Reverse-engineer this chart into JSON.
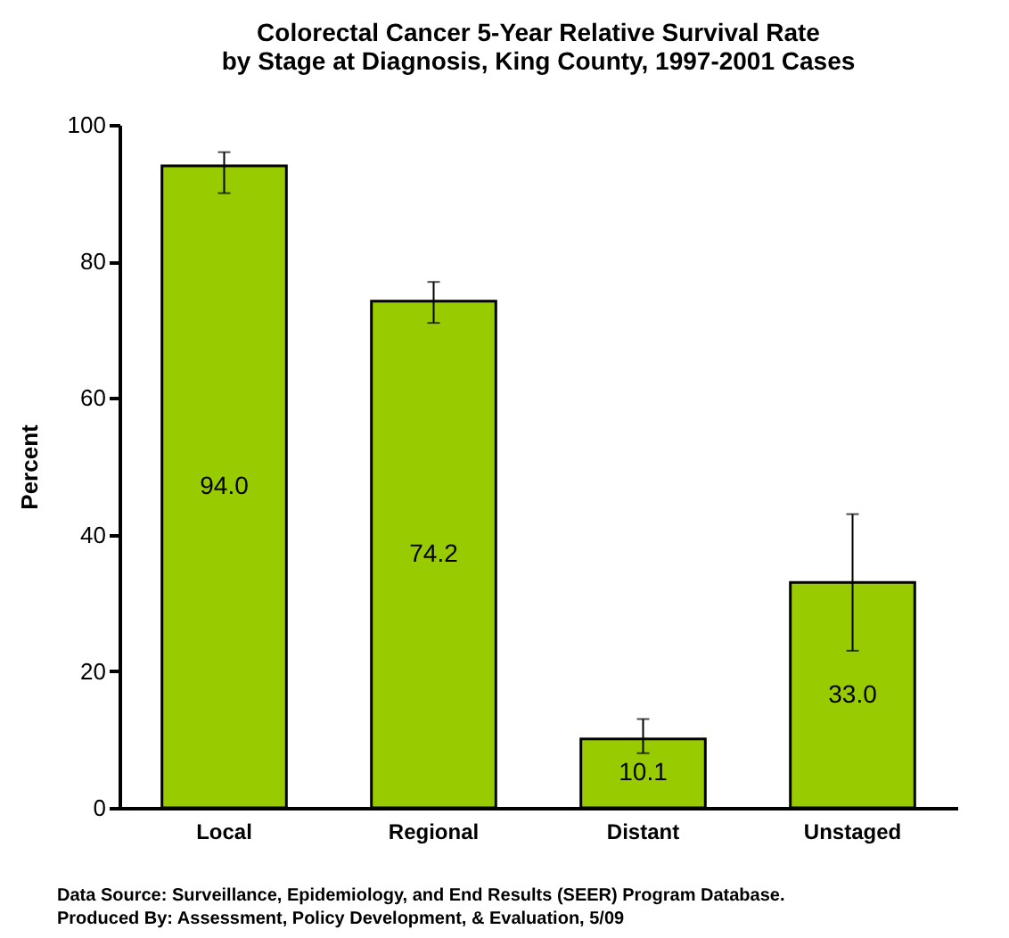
{
  "chart_data": {
    "type": "bar",
    "title": "Colorectal Cancer 5-Year Relative Survival Rate\nby Stage at Diagnosis, King County, 1997-2001 Cases",
    "ylabel": "Percent",
    "categories": [
      "Local",
      "Regional",
      "Distant",
      "Unstaged"
    ],
    "values": [
      94.0,
      74.2,
      10.1,
      33.0
    ],
    "value_labels": [
      "94.0",
      "74.2",
      "10.1",
      "33.0"
    ],
    "errors": [
      [
        90,
        96
      ],
      [
        71,
        77
      ],
      [
        8,
        13
      ],
      [
        23,
        43
      ]
    ],
    "color": "#99cc00",
    "ylim": [
      0,
      100
    ],
    "yticks": [
      0,
      20,
      40,
      60,
      80,
      100
    ],
    "grid": false,
    "annotations": [
      "Data Source: Surveillance, Epidemiology, and End Results (SEER) Program Database.",
      "Produced By: Assessment, Policy Development, & Evaluation, 5/09"
    ]
  }
}
